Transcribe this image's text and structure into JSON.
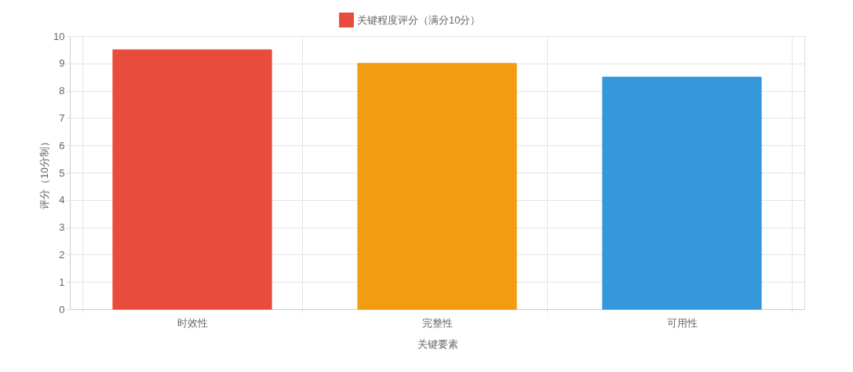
{
  "chart_data": {
    "type": "bar",
    "xlabel": "关键要素",
    "ylabel": "评分（10分制）",
    "categories": [
      "时效性",
      "完整性",
      "可用性"
    ],
    "series": [
      {
        "name": "关键程度评分（满分10分）",
        "colors": [
          "#e74c3c",
          "#f39c12",
          "#3498db"
        ],
        "values": [
          9.5,
          9.0,
          8.5
        ]
      }
    ],
    "ylim": [
      0,
      10
    ],
    "yticks": [
      0,
      1,
      2,
      3,
      4,
      5,
      6,
      7,
      8,
      9,
      10
    ],
    "grid": true,
    "legend": "top"
  }
}
